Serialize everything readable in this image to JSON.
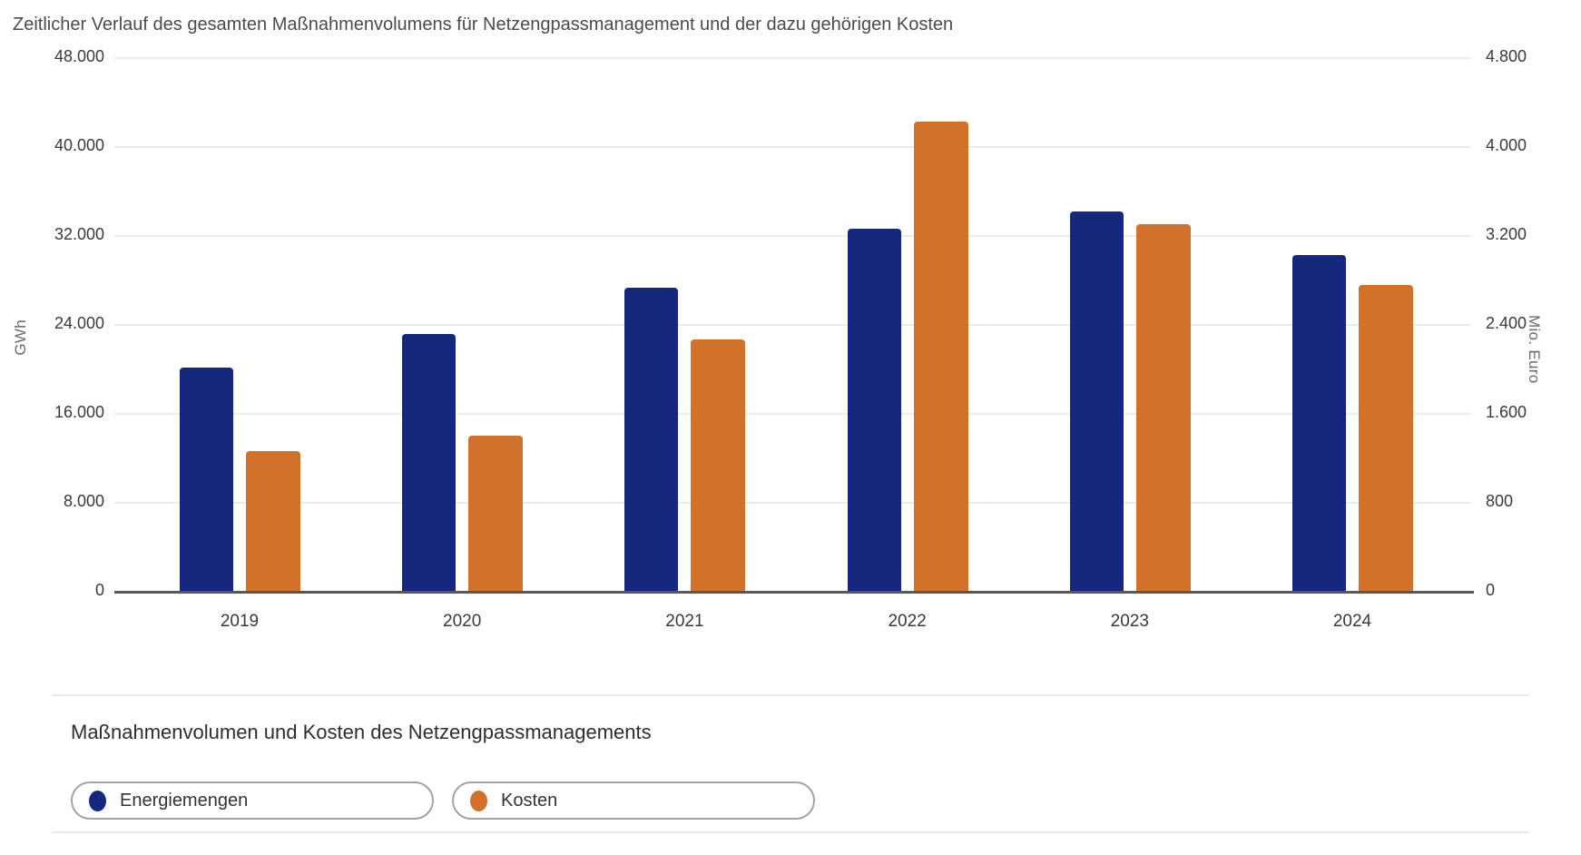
{
  "page": {
    "title": "Zeitlicher Verlauf des gesamten Maßnahmenvolumens für Netzengpassmanagement und der dazu gehörigen Kosten"
  },
  "chart_data": {
    "type": "bar",
    "title": "Zeitlicher Verlauf des gesamten Maßnahmenvolumens für Netzengpassmanagement und der dazu gehörigen Kosten",
    "categories": [
      "2019",
      "2020",
      "2021",
      "2022",
      "2023",
      "2024"
    ],
    "series": [
      {
        "name": "Energiemengen",
        "axis": "left",
        "unit": "GWh",
        "color": "#15287D",
        "values": [
          20100,
          23100,
          27300,
          32600,
          34100,
          30200
        ]
      },
      {
        "name": "Kosten",
        "axis": "right",
        "unit": "Mio. Euro",
        "color": "#D0722B",
        "values": [
          1260,
          1400,
          2260,
          4220,
          3300,
          2750
        ]
      }
    ],
    "left_axis": {
      "label": "GWh",
      "min": 0,
      "max": 48000,
      "tick_step": 8000,
      "ticks": [
        "48.000",
        "40.000",
        "32.000",
        "24.000",
        "16.000",
        "8.000",
        "0"
      ]
    },
    "right_axis": {
      "label": "Mio. Euro",
      "min": 0,
      "max": 4800,
      "tick_step": 800,
      "ticks": [
        "4.800",
        "4.000",
        "3.200",
        "2.400",
        "1.600",
        "800",
        "0"
      ]
    },
    "grid": true,
    "legend_position": "bottom"
  },
  "legend": {
    "heading": "Maßnahmenvolumen und Kosten des Netzengpassmanagements",
    "items": [
      {
        "label": "Energiemengen",
        "color": "#15287D"
      },
      {
        "label": "Kosten",
        "color": "#D0722B"
      }
    ]
  },
  "colors": {
    "energiemengen": "#15287D",
    "kosten": "#D0722B",
    "axis_line": "#58585A",
    "gridline": "#ECECEC",
    "divider": "#E9E9E9",
    "title_text": "#4B4B4B",
    "tick_text": "#3A3A3A"
  }
}
